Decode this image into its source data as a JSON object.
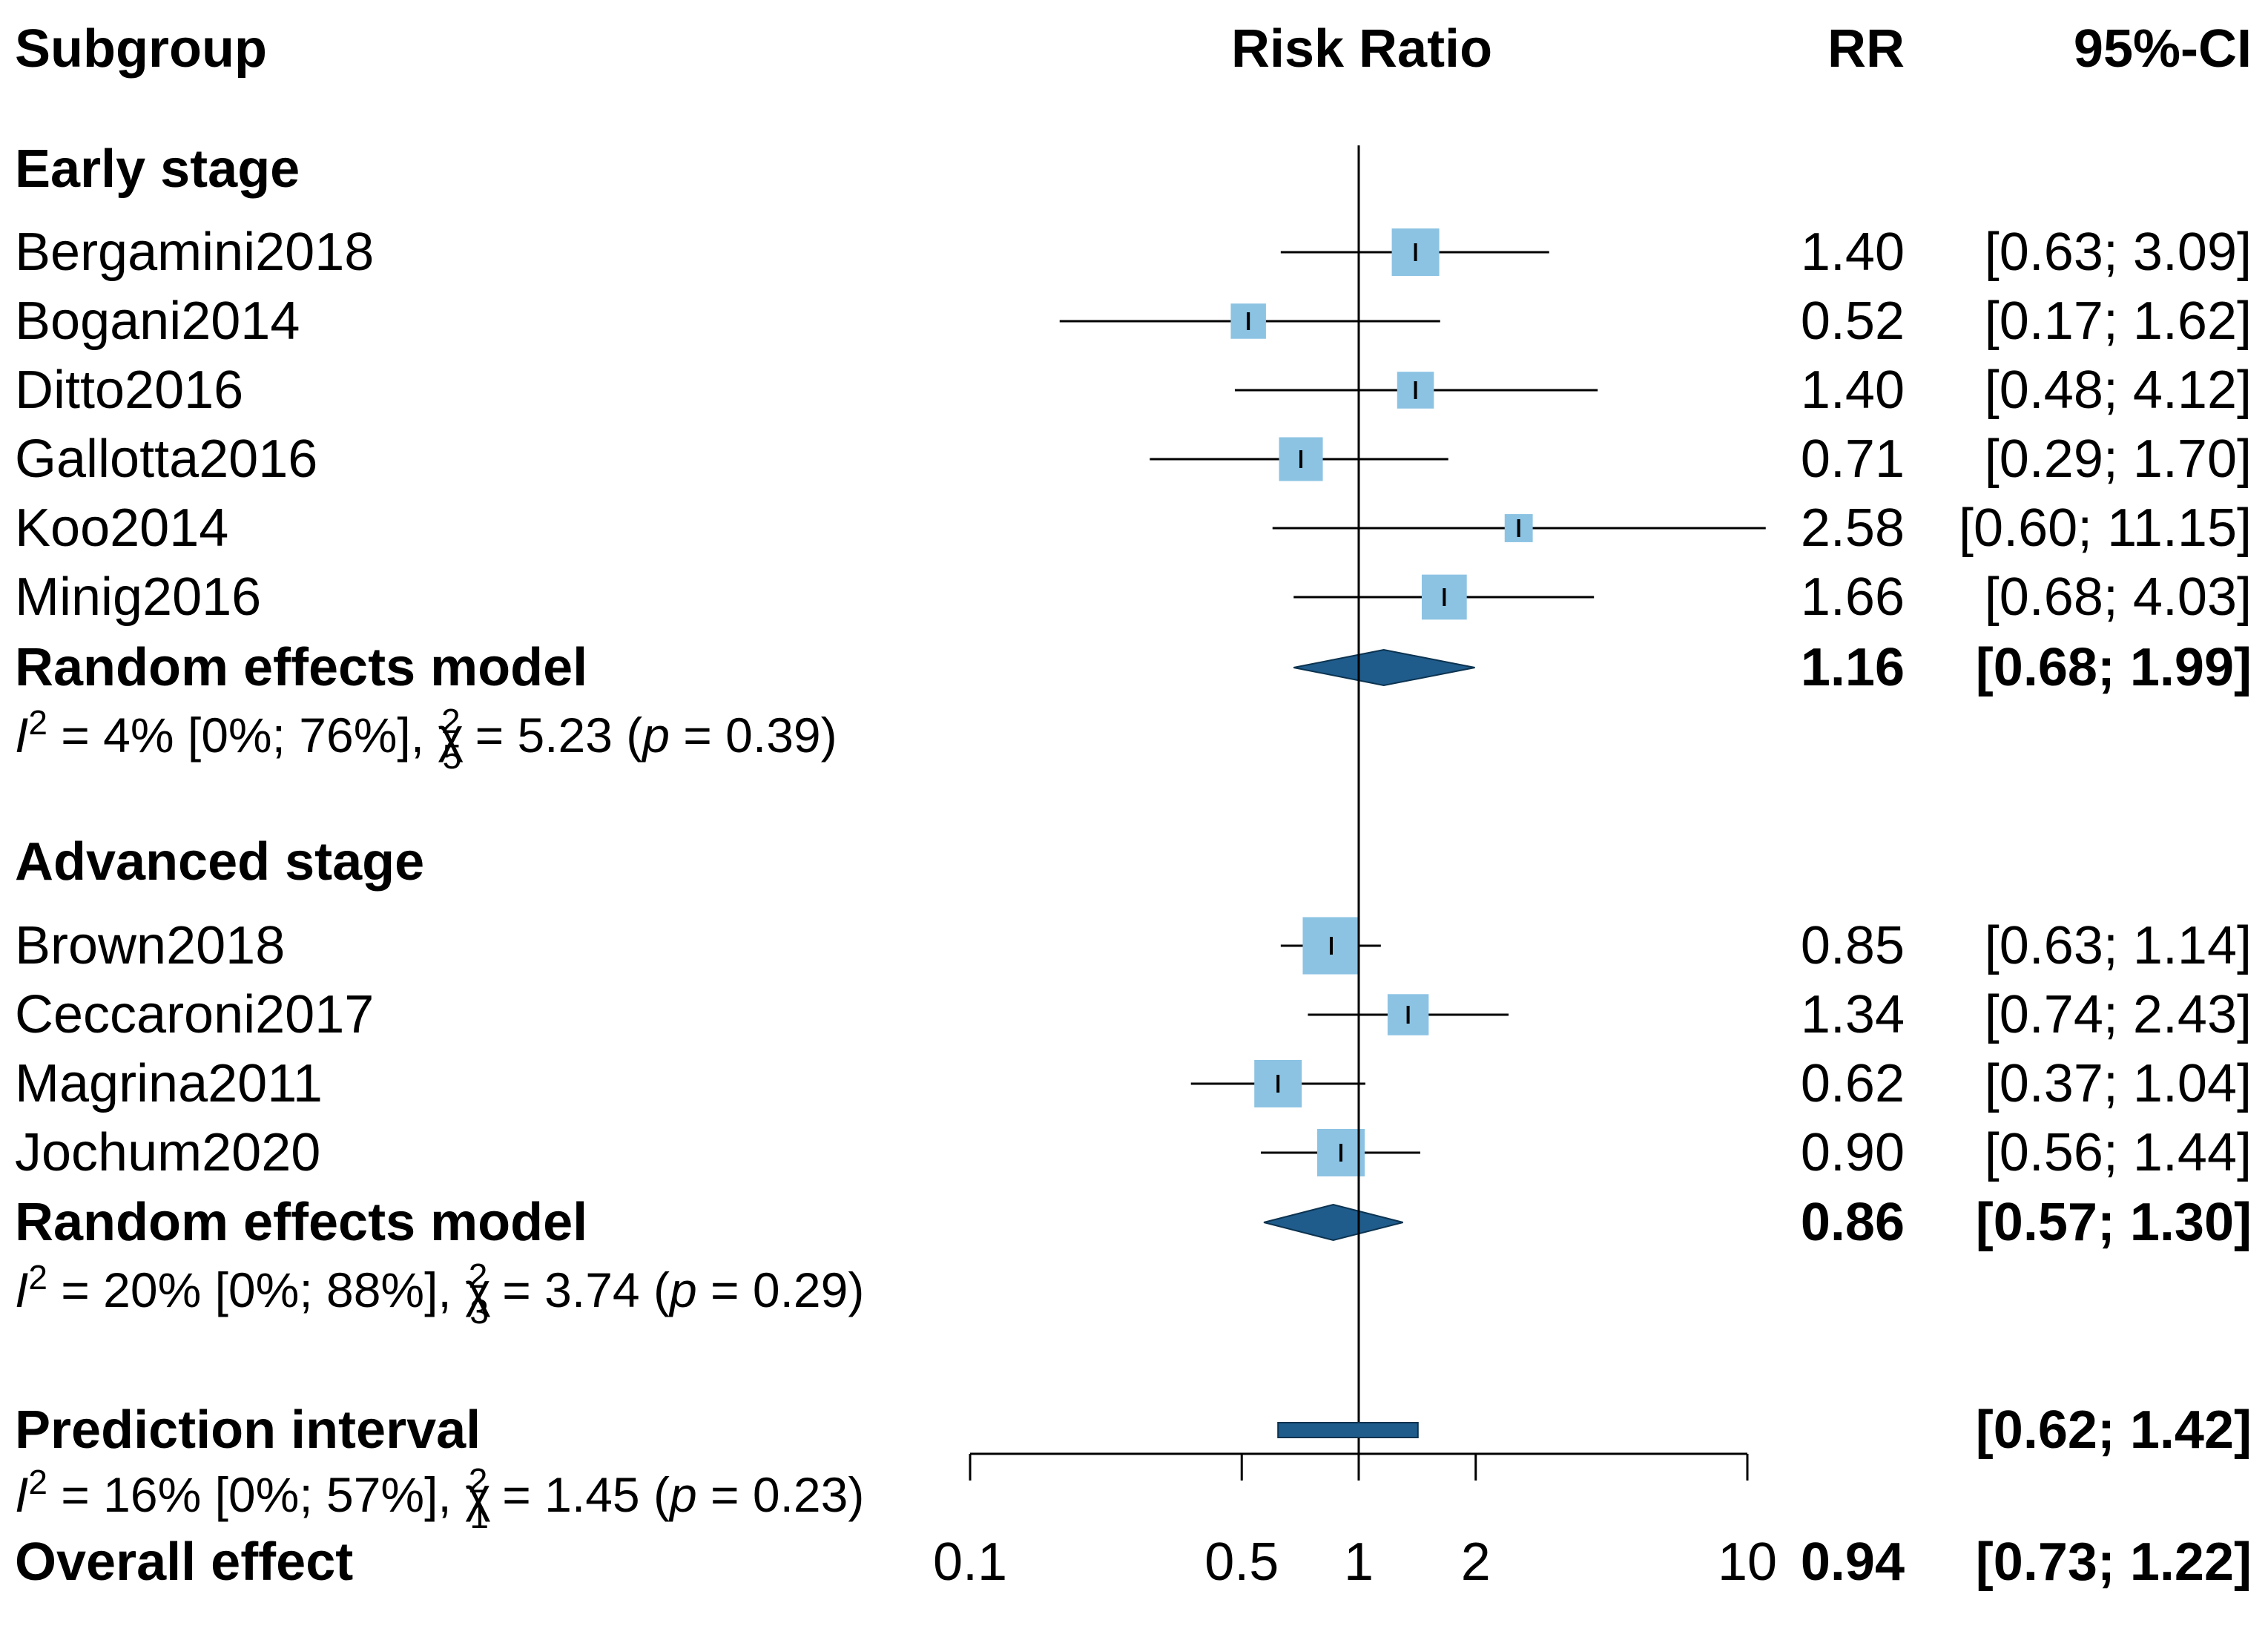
{
  "chart_data": {
    "type": "forest",
    "headers": {
      "subgroup": "Subgroup",
      "axis": "Risk Ratio",
      "rr": "RR",
      "ci": "95%-CI"
    },
    "groups": [
      {
        "label": "Early stage",
        "studies": [
          {
            "name": "Bergamini2018",
            "rr": 1.4,
            "lo": 0.63,
            "hi": 3.09,
            "weight": 1.0,
            "rr_text": "1.40",
            "ci_text": "[0.63;  3.09]"
          },
          {
            "name": "Bogani2014",
            "rr": 0.52,
            "lo": 0.17,
            "hi": 1.62,
            "weight": 0.55,
            "rr_text": "0.52",
            "ci_text": "[0.17;  1.62]"
          },
          {
            "name": "Ditto2016",
            "rr": 1.4,
            "lo": 0.48,
            "hi": 4.12,
            "weight": 0.6,
            "rr_text": "1.40",
            "ci_text": "[0.48;  4.12]"
          },
          {
            "name": "Gallotta2016",
            "rr": 0.71,
            "lo": 0.29,
            "hi": 1.7,
            "weight": 0.85,
            "rr_text": "0.71",
            "ci_text": "[0.29;  1.70]"
          },
          {
            "name": "Koo2014",
            "rr": 2.58,
            "lo": 0.6,
            "hi": 11.15,
            "weight": 0.35,
            "rr_text": "2.58",
            "ci_text": "[0.60; 11.15]"
          },
          {
            "name": "Minig2016",
            "rr": 1.66,
            "lo": 0.68,
            "hi": 4.03,
            "weight": 0.9,
            "rr_text": "1.66",
            "ci_text": "[0.68;  4.03]"
          }
        ],
        "model": {
          "label": "Random effects model",
          "rr": 1.16,
          "lo": 0.68,
          "hi": 1.99,
          "rr_text": "1.16",
          "ci_text": "[0.68;  1.99]"
        },
        "het": {
          "i2_prefix": "I",
          "i2_text": " = 4% [0%; 76%], ",
          "chi_sub": "5",
          "chi_text": " = 5.23 (",
          "p_text": " = 0.39)"
        }
      },
      {
        "label": "Advanced stage",
        "studies": [
          {
            "name": "Brown2018",
            "rr": 0.85,
            "lo": 0.63,
            "hi": 1.14,
            "weight": 1.45,
            "rr_text": "0.85",
            "ci_text": "[0.63;  1.14]"
          },
          {
            "name": "Ceccaroni2017",
            "rr": 1.34,
            "lo": 0.74,
            "hi": 2.43,
            "weight": 0.75,
            "rr_text": "1.34",
            "ci_text": "[0.74;  2.43]"
          },
          {
            "name": "Magrina2011",
            "rr": 0.62,
            "lo": 0.37,
            "hi": 1.04,
            "weight": 1.0,
            "rr_text": "0.62",
            "ci_text": "[0.37;  1.04]"
          },
          {
            "name": "Jochum2020",
            "rr": 0.9,
            "lo": 0.56,
            "hi": 1.44,
            "weight": 1.0,
            "rr_text": "0.90",
            "ci_text": "[0.56;  1.44]"
          }
        ],
        "model": {
          "label": "Random effects model",
          "rr": 0.86,
          "lo": 0.57,
          "hi": 1.3,
          "rr_text": "0.86",
          "ci_text": "[0.57;  1.30]"
        },
        "het": {
          "i2_prefix": "I",
          "i2_text": " = 20% [0%; 88%], ",
          "chi_sub": "3",
          "chi_text": " = 3.74 (",
          "p_text": " = 0.29)"
        }
      }
    ],
    "prediction": {
      "label": "Prediction interval",
      "lo": 0.62,
      "hi": 1.42,
      "ci_text": "[0.62;  1.42]"
    },
    "overall_het": {
      "i2_prefix": "I",
      "i2_text": " = 16% [0%; 57%], ",
      "chi_sub": "1",
      "chi_text": " = 1.45 (",
      "p_text": " = 0.23)"
    },
    "overall": {
      "label": "Overall effect",
      "rr": 0.94,
      "lo": 0.73,
      "hi": 1.22,
      "rr_text": "0.94",
      "ci_text": "[0.73;  1.22]"
    },
    "axis": {
      "scale": "log",
      "range": [
        0.1,
        10
      ],
      "ticks": [
        0.1,
        0.5,
        1,
        2,
        10
      ],
      "tick_labels": [
        "0.1",
        "0.5",
        "1",
        "2",
        "10"
      ],
      "reference": 1
    },
    "symbols": {
      "chi": "χ",
      "p": "p",
      "sup2": "2"
    },
    "colors": {
      "study_box": "#8cc3e3",
      "diamond": "#1f5c8c",
      "line": "#000000"
    }
  }
}
